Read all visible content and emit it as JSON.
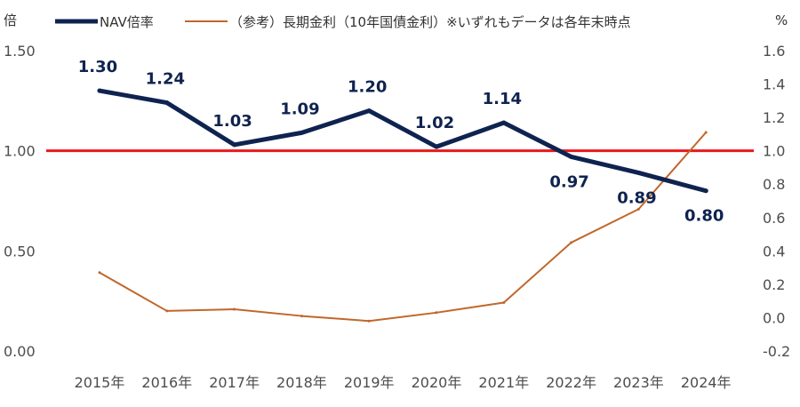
{
  "chart_data": {
    "type": "line",
    "categories": [
      "2015年",
      "2016年",
      "2017年",
      "2018年",
      "2019年",
      "2020年",
      "2021年",
      "2022年",
      "2023年",
      "2024年"
    ],
    "series": [
      {
        "name": "NAV倍率",
        "axis": "left",
        "color": "#0f2350",
        "values": [
          1.3,
          1.24,
          1.03,
          1.09,
          1.2,
          1.02,
          1.14,
          0.97,
          0.89,
          0.8
        ],
        "labels": [
          "1.30",
          "1.24",
          "1.03",
          "1.09",
          "1.20",
          "1.02",
          "1.14",
          "0.97",
          "0.89",
          "0.80"
        ]
      },
      {
        "name": "（参考）長期金利（10年国債金利）※いずれもデータは各年末時点",
        "axis": "right",
        "color": "#c0672a",
        "values": [
          0.27,
          0.04,
          0.05,
          0.01,
          -0.02,
          0.03,
          0.09,
          0.45,
          0.65,
          1.11
        ]
      }
    ],
    "reference_line": {
      "axis": "left",
      "value": 1.0,
      "color": "#e8191c"
    },
    "left_axis": {
      "unit": "倍",
      "ylim": [
        0,
        1.5
      ],
      "ticks": [
        0,
        0.5,
        1.0,
        1.5
      ],
      "tick_labels": [
        "0.00",
        "0.50",
        "1.00",
        "1.50"
      ]
    },
    "right_axis": {
      "unit": "%",
      "ylim": [
        -0.2,
        1.6
      ],
      "ticks": [
        -0.2,
        0.0,
        0.2,
        0.4,
        0.6,
        0.8,
        1.0,
        1.2,
        1.4,
        1.6
      ],
      "tick_labels": [
        "-0.2",
        "0.0",
        "0.2",
        "0.4",
        "0.6",
        "0.8",
        "1.0",
        "1.2",
        "1.4",
        "1.6"
      ]
    },
    "grid": false,
    "legend": "top"
  }
}
